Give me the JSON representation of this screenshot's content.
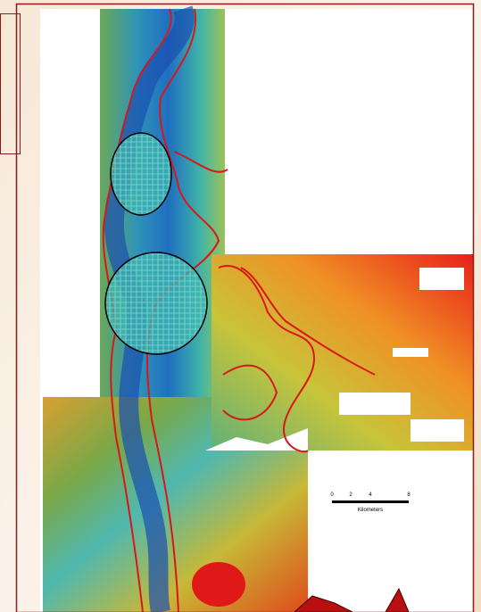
{
  "scale_bar": {
    "ticks": [
      0,
      2,
      4,
      8
    ],
    "unit": "Kilometers"
  }
}
